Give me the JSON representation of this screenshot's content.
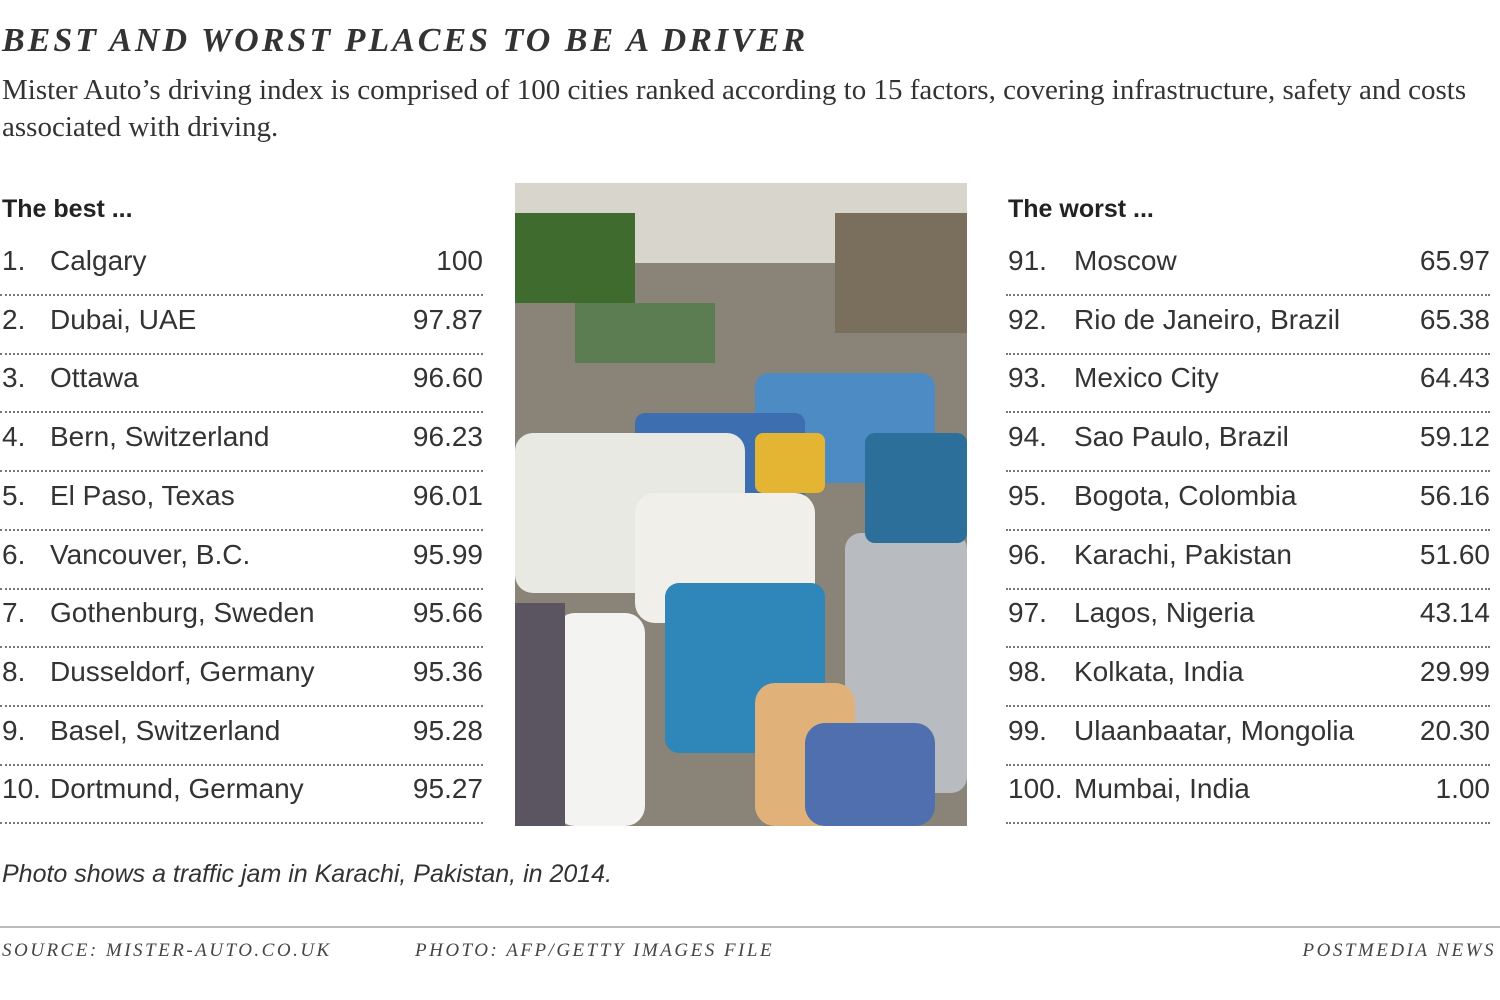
{
  "header": {
    "title": "BEST AND WORST PLACES TO BE A DRIVER",
    "subtitle": "Mister Auto’s driving index is comprised of 100 cities ranked according to 15 factors, covering infrastructure, safety and costs associated with driving."
  },
  "best": {
    "heading": "The best ...",
    "rows": [
      {
        "rank": "1.",
        "city": "Calgary",
        "score": "100"
      },
      {
        "rank": "2.",
        "city": "Dubai, UAE",
        "score": "97.87"
      },
      {
        "rank": "3.",
        "city": "Ottawa",
        "score": "96.60"
      },
      {
        "rank": "4.",
        "city": "Bern, Switzerland",
        "score": "96.23"
      },
      {
        "rank": "5.",
        "city": "El Paso, Texas",
        "score": "96.01"
      },
      {
        "rank": "6.",
        "city": "Vancouver, B.C.",
        "score": "95.99"
      },
      {
        "rank": "7.",
        "city": "Gothenburg, Sweden",
        "score": "95.66"
      },
      {
        "rank": "8.",
        "city": "Dusseldorf, Germany",
        "score": "95.36"
      },
      {
        "rank": "9.",
        "city": "Basel, Switzerland",
        "score": "95.28"
      },
      {
        "rank": "10.",
        "city": "Dortmund, Germany",
        "score": "95.27"
      }
    ]
  },
  "worst": {
    "heading": "The worst ...",
    "rows": [
      {
        "rank": "91.",
        "city": "Moscow",
        "score": "65.97"
      },
      {
        "rank": "92.",
        "city": "Rio de Janeiro, Brazil",
        "score": "65.38"
      },
      {
        "rank": "93.",
        "city": "Mexico City",
        "score": "64.43"
      },
      {
        "rank": "94.",
        "city": "Sao Paulo, Brazil",
        "score": "59.12"
      },
      {
        "rank": "95.",
        "city": "Bogota, Colombia",
        "score": "56.16"
      },
      {
        "rank": "96.",
        "city": "Karachi, Pakistan",
        "score": "51.60"
      },
      {
        "rank": "97.",
        "city": "Lagos, Nigeria",
        "score": "43.14"
      },
      {
        "rank": "98.",
        "city": "Kolkata, India",
        "score": "29.99"
      },
      {
        "rank": "99.",
        "city": "Ulaanbaatar, Mongolia",
        "score": "20.30"
      },
      {
        "rank": "100.",
        "city": "Mumbai, India",
        "score": "1.00"
      }
    ]
  },
  "caption": "Photo shows a traffic jam in Karachi, Pakistan, in 2014.",
  "footer": {
    "source": "SOURCE: MISTER-AUTO.CO.UK",
    "photo_credit": "PHOTO: AFP/GETTY IMAGES FILE",
    "brand": "POSTMEDIA NEWS"
  }
}
